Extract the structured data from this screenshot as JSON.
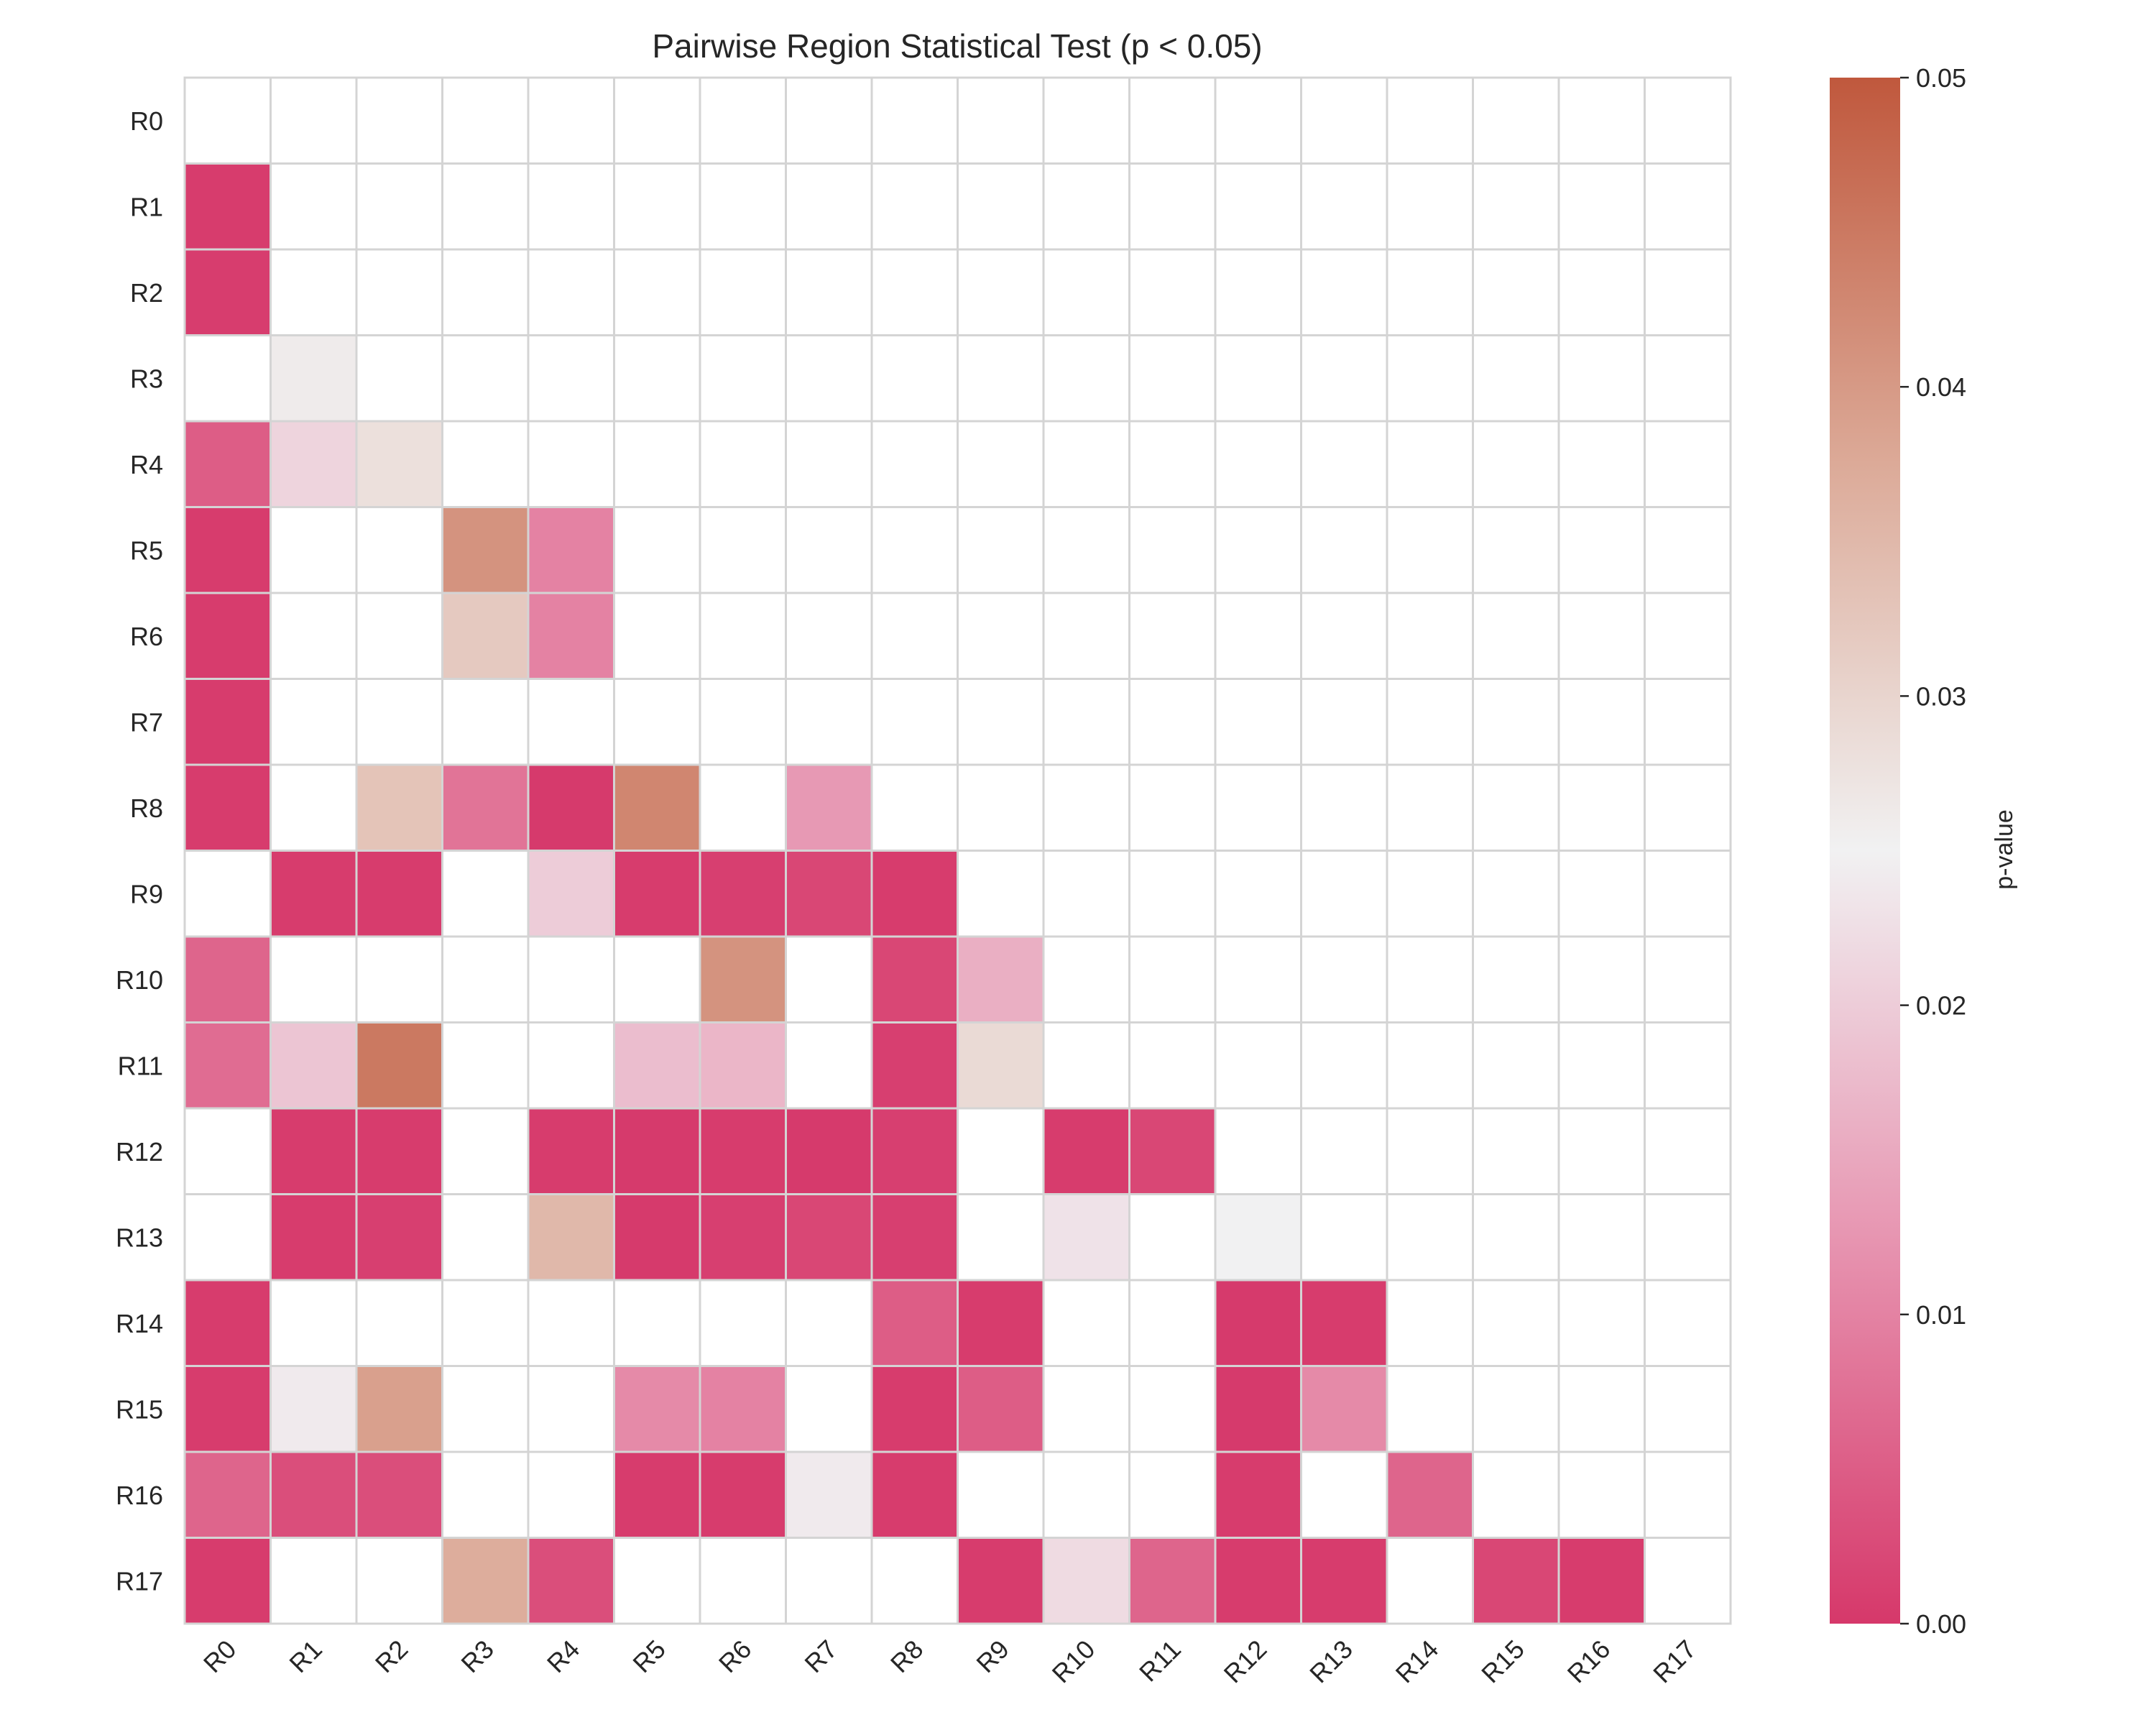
{
  "chart_data": {
    "type": "heatmap",
    "title": "Pairwise Region Statistical Test (p < 0.05)",
    "xlabel": "",
    "ylabel": "",
    "x_categories": [
      "R0",
      "R1",
      "R2",
      "R3",
      "R4",
      "R5",
      "R6",
      "R7",
      "R8",
      "R9",
      "R10",
      "R11",
      "R12",
      "R13",
      "R14",
      "R15",
      "R16",
      "R17"
    ],
    "y_categories": [
      "R0",
      "R1",
      "R2",
      "R3",
      "R4",
      "R5",
      "R6",
      "R7",
      "R8",
      "R9",
      "R10",
      "R11",
      "R12",
      "R13",
      "R14",
      "R15",
      "R16",
      "R17"
    ],
    "masked": "upper triangle and values with p >= 0.05 shown as blank",
    "values": [
      [
        null,
        null,
        null,
        null,
        null,
        null,
        null,
        null,
        null,
        null,
        null,
        null,
        null,
        null,
        null,
        null,
        null,
        null
      ],
      [
        0.0005,
        null,
        null,
        null,
        null,
        null,
        null,
        null,
        null,
        null,
        null,
        null,
        null,
        null,
        null,
        null,
        null,
        null
      ],
      [
        0.0007,
        null,
        null,
        null,
        null,
        null,
        null,
        null,
        null,
        null,
        null,
        null,
        null,
        null,
        null,
        null,
        null,
        null
      ],
      [
        null,
        0.026,
        null,
        null,
        null,
        null,
        null,
        null,
        null,
        null,
        null,
        null,
        null,
        null,
        null,
        null,
        null,
        null
      ],
      [
        0.005,
        0.021,
        0.028,
        null,
        null,
        null,
        null,
        null,
        null,
        null,
        null,
        null,
        null,
        null,
        null,
        null,
        null,
        null
      ],
      [
        0.0005,
        null,
        null,
        0.041,
        0.01,
        null,
        null,
        null,
        null,
        null,
        null,
        null,
        null,
        null,
        null,
        null,
        null,
        null
      ],
      [
        0.0005,
        null,
        null,
        0.032,
        0.01,
        null,
        null,
        null,
        null,
        null,
        null,
        null,
        null,
        null,
        null,
        null,
        null,
        null
      ],
      [
        0.0005,
        null,
        null,
        null,
        null,
        null,
        null,
        null,
        null,
        null,
        null,
        null,
        null,
        null,
        null,
        null,
        null,
        null
      ],
      [
        0.0005,
        null,
        0.033,
        0.008,
        0.0003,
        0.043,
        null,
        0.013,
        null,
        null,
        null,
        null,
        null,
        null,
        null,
        null,
        null,
        null
      ],
      [
        null,
        0.0005,
        0.0005,
        null,
        0.02,
        0.0005,
        0.001,
        0.002,
        0.0005,
        null,
        null,
        null,
        null,
        null,
        null,
        null,
        null,
        null
      ],
      [
        0.006,
        null,
        null,
        null,
        null,
        null,
        0.041,
        null,
        0.002,
        0.016,
        null,
        null,
        null,
        null,
        null,
        null,
        null,
        null
      ],
      [
        0.007,
        0.019,
        0.045,
        null,
        null,
        0.018,
        0.017,
        null,
        0.001,
        0.029,
        null,
        null,
        null,
        null,
        null,
        null,
        null,
        null
      ],
      [
        null,
        0.0005,
        0.0005,
        null,
        0.0005,
        0.0003,
        0.0005,
        0.0003,
        0.001,
        null,
        0.0005,
        0.002,
        null,
        null,
        null,
        null,
        null,
        null
      ],
      [
        null,
        0.0005,
        0.001,
        null,
        0.035,
        0.0003,
        0.001,
        0.002,
        0.001,
        null,
        0.023,
        null,
        0.025,
        null,
        null,
        null,
        null,
        null
      ],
      [
        0.0005,
        null,
        null,
        null,
        null,
        null,
        null,
        null,
        0.005,
        0.0005,
        null,
        null,
        0.0003,
        0.0005,
        null,
        null,
        null,
        null
      ],
      [
        0.0005,
        0.024,
        0.039,
        null,
        null,
        0.011,
        0.01,
        null,
        0.0005,
        0.005,
        null,
        null,
        0.0003,
        0.011,
        null,
        null,
        null,
        null
      ],
      [
        0.006,
        0.003,
        0.003,
        null,
        null,
        0.0005,
        0.0005,
        0.024,
        0.0005,
        null,
        null,
        null,
        0.0005,
        null,
        0.006,
        null,
        null,
        null
      ],
      [
        0.0005,
        null,
        null,
        0.037,
        0.003,
        null,
        null,
        null,
        null,
        0.0005,
        0.022,
        0.006,
        0.0005,
        0.0005,
        null,
        0.002,
        0.0005,
        null
      ]
    ],
    "vmin": 0,
    "vmax": 0.05,
    "grid": true,
    "colorbar": {
      "label": "p-value",
      "ticks": [
        "0.00",
        "0.01",
        "0.02",
        "0.03",
        "0.04",
        "0.05"
      ],
      "tick_values": [
        0,
        0.01,
        0.02,
        0.03,
        0.04,
        0.05
      ],
      "colors": [
        "#d6386a",
        "#e795b1",
        "#f1f1f2",
        "#dcaa98",
        "#c0583d"
      ],
      "placement": "right"
    }
  }
}
